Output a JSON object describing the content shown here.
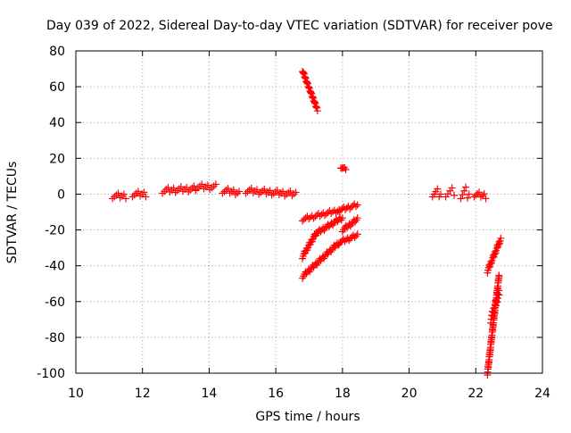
{
  "chart_data": {
    "type": "scatter",
    "title": "Day 039 of 2022, Sidereal Day-to-day VTEC variation (SDTVAR) for receiver pove",
    "xlabel": "GPS time / hours",
    "ylabel": "SDTVAR / TECUs",
    "xlim": [
      10,
      24
    ],
    "ylim": [
      -100,
      80
    ],
    "xticks": [
      10,
      12,
      14,
      16,
      18,
      20,
      22,
      24
    ],
    "yticks": [
      -100,
      -80,
      -60,
      -40,
      -20,
      0,
      20,
      40,
      60,
      80
    ],
    "grid": true,
    "marker": "+",
    "series": [
      {
        "name": "SDTVAR",
        "color": "#ff0000",
        "segments": [
          {
            "x0": 11.1,
            "x1": 11.5,
            "y0": -1,
            "y1": -1,
            "spread": 3
          },
          {
            "x0": 11.7,
            "x1": 12.1,
            "y0": 0,
            "y1": 0,
            "spread": 3
          },
          {
            "x0": 12.6,
            "x1": 13.6,
            "y0": 2,
            "y1": 3,
            "spread": 3
          },
          {
            "x0": 13.6,
            "x1": 14.2,
            "y0": 4,
            "y1": 4,
            "spread": 3
          },
          {
            "x0": 14.4,
            "x1": 14.9,
            "y0": 2,
            "y1": 1,
            "spread": 3
          },
          {
            "x0": 15.1,
            "x1": 16.6,
            "y0": 2,
            "y1": 0,
            "spread": 3
          },
          {
            "x0": 16.8,
            "x1": 17.25,
            "y0": 69,
            "y1": 47,
            "spread": 1
          },
          {
            "x0": 17.95,
            "x1": 18.1,
            "y0": 15,
            "y1": 14,
            "spread": 1
          },
          {
            "x0": 16.8,
            "x1": 17.9,
            "y0": -14,
            "y1": -9,
            "spread": 2
          },
          {
            "x0": 17.9,
            "x1": 18.45,
            "y0": -9,
            "y1": -6,
            "spread": 2
          },
          {
            "x0": 16.8,
            "x1": 17.2,
            "y0": -35,
            "y1": -22,
            "spread": 2
          },
          {
            "x0": 17.2,
            "x1": 18.0,
            "y0": -22,
            "y1": -13,
            "spread": 2
          },
          {
            "x0": 16.8,
            "x1": 17.9,
            "y0": -46,
            "y1": -27,
            "spread": 2
          },
          {
            "x0": 18.0,
            "x1": 18.45,
            "y0": -20,
            "y1": -14,
            "spread": 2
          },
          {
            "x0": 17.9,
            "x1": 18.45,
            "y0": -27,
            "y1": -23,
            "spread": 2
          },
          {
            "x0": 20.7,
            "x1": 20.95,
            "y0": 1,
            "y1": 0,
            "spread": 5
          },
          {
            "x0": 21.1,
            "x1": 21.35,
            "y0": 1,
            "y1": 1,
            "spread": 5
          },
          {
            "x0": 21.55,
            "x1": 21.8,
            "y0": 1,
            "y1": 0,
            "spread": 7
          },
          {
            "x0": 21.95,
            "x1": 22.3,
            "y0": 0,
            "y1": -1,
            "spread": 3
          },
          {
            "x0": 22.35,
            "x1": 22.75,
            "y0": -43,
            "y1": -25,
            "spread": 2
          },
          {
            "x0": 22.35,
            "x1": 22.7,
            "y0": -100,
            "y1": -45,
            "spread": 2
          },
          {
            "x0": 22.45,
            "x1": 22.7,
            "y0": -70,
            "y1": -55,
            "spread": 4
          }
        ]
      }
    ]
  }
}
